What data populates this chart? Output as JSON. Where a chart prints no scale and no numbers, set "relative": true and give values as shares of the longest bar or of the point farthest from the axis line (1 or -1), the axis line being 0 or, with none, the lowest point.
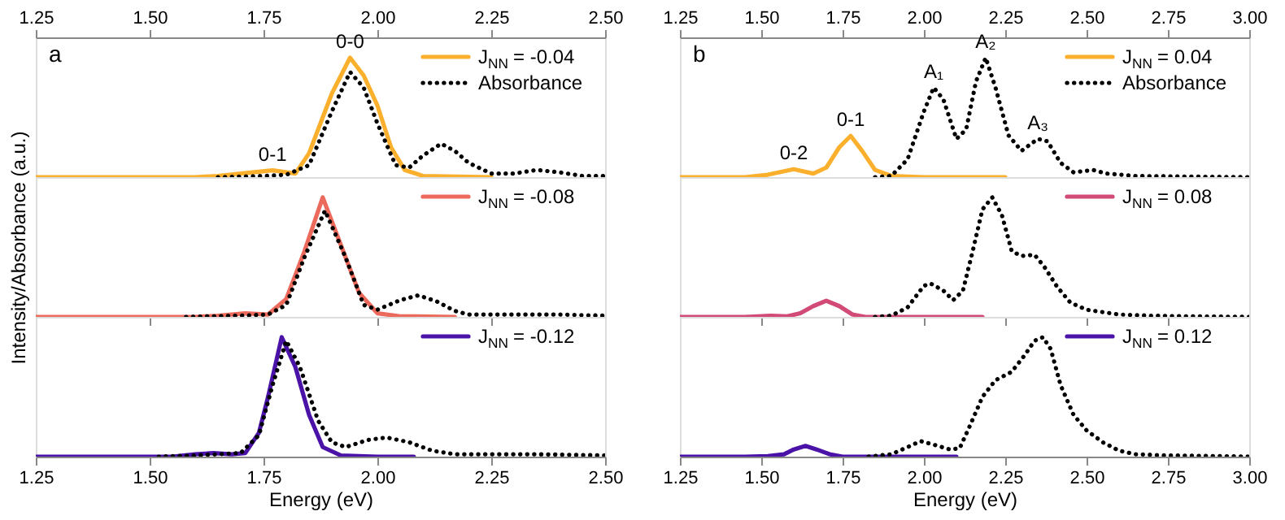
{
  "chart_data": [
    {
      "type": "line",
      "relative": true,
      "xlim": [
        1.25,
        2.5
      ],
      "xticks": [
        1.25,
        {
          "value": 1.5,
          "label": "1.50"
        },
        1.75,
        {
          "value": 2.0,
          "label": "2.00"
        },
        2.25,
        {
          "value": 2.5,
          "label": "2.50"
        }
      ],
      "legend": "top right",
      "annotations": [
        "a",
        {
          "text": "0-1",
          "x": 1.77,
          "y": 0.057
        },
        {
          "text": "0-0",
          "x": 1.94,
          "y": 1.0
        }
      ],
      "series": [
        {
          "name": "J$_{NN}$ = -0.04",
          "color": "#fbb02d",
          "line_style": "solid",
          "x": [
            1.25,
            1.6,
            1.65,
            1.7,
            1.77,
            1.82,
            1.85,
            1.88,
            1.9,
            1.94,
            1.97,
            2.0,
            2.03,
            2.06,
            2.1,
            2.25
          ],
          "values": [
            0,
            0,
            0.01,
            0.03,
            0.057,
            0.03,
            0.2,
            0.5,
            0.7,
            1.0,
            0.85,
            0.6,
            0.25,
            0.06,
            0.01,
            0
          ]
        },
        {
          "name": "Absorbance",
          "color": "#000000",
          "line_style": "dotted",
          "x": [
            1.65,
            1.75,
            1.8,
            1.85,
            1.9,
            1.94,
            1.97,
            2.0,
            2.04,
            2.07,
            2.1,
            2.14,
            2.17,
            2.2,
            2.25,
            2.3,
            2.35,
            2.4,
            2.45,
            2.5
          ],
          "values": [
            0,
            0.01,
            0.02,
            0.1,
            0.55,
            0.88,
            0.75,
            0.45,
            0.1,
            0.08,
            0.18,
            0.28,
            0.22,
            0.12,
            0.03,
            0.03,
            0.06,
            0.04,
            0.01,
            0.01
          ]
        }
      ]
    },
    {
      "type": "line",
      "relative": true,
      "xlim": [
        1.25,
        2.5
      ],
      "xticks": [
        1.25,
        1.5,
        1.75,
        2.0,
        2.25,
        2.5
      ],
      "tick_labels": false,
      "legend": "top right",
      "ylabel": "Intensity/Absorbance (a.u.)",
      "series": [
        {
          "name": "J$_{NN}$ = -0.08",
          "color": "#ec6a5c",
          "line_style": "solid",
          "x": [
            1.25,
            1.6,
            1.65,
            1.71,
            1.76,
            1.8,
            1.84,
            1.88,
            1.92,
            1.96,
            2.0,
            2.05,
            2.17
          ],
          "values": [
            0,
            0,
            0.01,
            0.03,
            0.02,
            0.15,
            0.55,
            1.0,
            0.6,
            0.2,
            0.03,
            0.005,
            0
          ]
        },
        {
          "color": "#000000",
          "line_style": "dotted",
          "x": [
            1.58,
            1.7,
            1.76,
            1.8,
            1.84,
            1.885,
            1.93,
            1.97,
            2.0,
            2.05,
            2.09,
            2.13,
            2.17,
            2.2,
            2.3,
            2.4,
            2.5
          ],
          "values": [
            0,
            0.01,
            0.02,
            0.1,
            0.5,
            0.89,
            0.5,
            0.1,
            0.06,
            0.14,
            0.18,
            0.13,
            0.05,
            0.02,
            0.02,
            0.02,
            0.01
          ]
        }
      ]
    },
    {
      "type": "line",
      "relative": true,
      "xlim": [
        1.25,
        2.5
      ],
      "xticks": [
        1.25,
        {
          "value": 1.5,
          "label": "1.50"
        },
        1.75,
        {
          "value": 2.0,
          "label": "2.00"
        },
        2.25,
        {
          "value": 2.5,
          "label": "2.50"
        }
      ],
      "xlabel": "Energy (eV)",
      "legend": "top right",
      "series": [
        {
          "name": "J$_{NN}$ = -0.12",
          "color": "#4b12a8",
          "line_style": "solid",
          "x": [
            1.25,
            1.55,
            1.6,
            1.64,
            1.68,
            1.71,
            1.74,
            1.76,
            1.79,
            1.82,
            1.85,
            1.88,
            1.92,
            2.0,
            2.08
          ],
          "values": [
            0,
            0,
            0.02,
            0.03,
            0.02,
            0.03,
            0.2,
            0.5,
            1.0,
            0.75,
            0.35,
            0.08,
            0.01,
            0,
            0
          ]
        },
        {
          "color": "#000000",
          "line_style": "dotted",
          "x": [
            1.52,
            1.6,
            1.7,
            1.74,
            1.77,
            1.8,
            1.83,
            1.87,
            1.9,
            1.93,
            1.98,
            2.02,
            2.07,
            2.12,
            2.17,
            2.25,
            2.35,
            2.5
          ],
          "values": [
            0,
            0.01,
            0.03,
            0.18,
            0.6,
            0.97,
            0.75,
            0.3,
            0.12,
            0.08,
            0.14,
            0.16,
            0.12,
            0.05,
            0.02,
            0.02,
            0.02,
            0.01
          ]
        }
      ]
    },
    {
      "type": "line",
      "relative": true,
      "xlim": [
        1.25,
        3.0
      ],
      "xticks": [
        1.25,
        {
          "value": 1.5,
          "label": "1.50"
        },
        1.75,
        {
          "value": 2.0,
          "label": "2.00"
        },
        2.25,
        {
          "value": 2.5,
          "label": "2.50"
        },
        2.75,
        {
          "value": 3.0,
          "label": "3.00"
        }
      ],
      "legend": "top right",
      "annotations": [
        "b",
        {
          "text": "0-2",
          "x": 1.6,
          "y": 0.066
        },
        {
          "text": "0-1",
          "x": 1.775,
          "y": 0.345
        },
        {
          "text": "A₁",
          "x": 2.03,
          "y": 0.75
        },
        {
          "text": "A₂",
          "x": 2.19,
          "y": 1.0
        },
        {
          "text": "A₃",
          "x": 2.35,
          "y": 0.32
        }
      ],
      "series": [
        {
          "name": "J$_{NN}$ = 0.04",
          "color": "#fbb02d",
          "line_style": "solid",
          "x": [
            1.25,
            1.45,
            1.52,
            1.6,
            1.66,
            1.7,
            1.74,
            1.775,
            1.81,
            1.85,
            1.9,
            2.0,
            2.25
          ],
          "values": [
            0,
            0,
            0.02,
            0.066,
            0.03,
            0.08,
            0.25,
            0.345,
            0.22,
            0.06,
            0.01,
            0,
            0
          ]
        },
        {
          "name": "Absorbance",
          "color": "#000000",
          "line_style": "dotted",
          "x": [
            1.85,
            1.9,
            1.95,
            2.0,
            2.03,
            2.06,
            2.1,
            2.13,
            2.16,
            2.19,
            2.22,
            2.26,
            2.3,
            2.35,
            2.38,
            2.42,
            2.46,
            2.52,
            2.56,
            2.65,
            2.8,
            3.0
          ],
          "values": [
            0,
            0.01,
            0.15,
            0.55,
            0.75,
            0.65,
            0.32,
            0.4,
            0.8,
            1.0,
            0.75,
            0.35,
            0.22,
            0.32,
            0.3,
            0.12,
            0.04,
            0.06,
            0.03,
            0.01,
            0.005,
            0
          ]
        }
      ]
    },
    {
      "type": "line",
      "relative": true,
      "xlim": [
        1.25,
        3.0
      ],
      "xticks": [
        1.25,
        1.5,
        1.75,
        2.0,
        2.25,
        2.5,
        2.75,
        3.0
      ],
      "tick_labels": false,
      "legend": "top right",
      "series": [
        {
          "name": "J$_{NN}$ = 0.08",
          "color": "#d24a76",
          "line_style": "solid",
          "x": [
            1.25,
            1.45,
            1.53,
            1.58,
            1.62,
            1.66,
            1.7,
            1.74,
            1.78,
            1.82,
            2.0,
            2.18
          ],
          "values": [
            0,
            0,
            0.01,
            0.005,
            0.03,
            0.09,
            0.135,
            0.09,
            0.02,
            0,
            0,
            0
          ]
        },
        {
          "color": "#000000",
          "line_style": "dotted",
          "x": [
            1.85,
            1.9,
            1.95,
            2.0,
            2.02,
            2.06,
            2.09,
            2.12,
            2.15,
            2.18,
            2.21,
            2.24,
            2.27,
            2.3,
            2.34,
            2.37,
            2.41,
            2.45,
            2.5,
            2.55,
            2.6,
            2.7,
            2.8,
            3.0
          ],
          "values": [
            0,
            0.01,
            0.08,
            0.26,
            0.28,
            0.22,
            0.14,
            0.22,
            0.55,
            0.9,
            1.0,
            0.85,
            0.55,
            0.51,
            0.52,
            0.42,
            0.25,
            0.12,
            0.06,
            0.04,
            0.02,
            0.01,
            0.005,
            0
          ]
        }
      ]
    },
    {
      "type": "line",
      "relative": true,
      "xlim": [
        1.25,
        3.0
      ],
      "xticks": [
        1.25,
        {
          "value": 1.5,
          "label": "1.50"
        },
        1.75,
        {
          "value": 2.0,
          "label": "2.00"
        },
        2.25,
        {
          "value": 2.5,
          "label": "2.50"
        },
        2.75,
        {
          "value": 3.0,
          "label": "3.00"
        }
      ],
      "xlabel": "Energy (eV)",
      "legend": "top right",
      "series": [
        {
          "name": "J$_{NN}$ = 0.12",
          "color": "#4b12a8",
          "line_style": "solid",
          "x": [
            1.25,
            1.45,
            1.52,
            1.57,
            1.6,
            1.636,
            1.67,
            1.71,
            1.75,
            2.1
          ],
          "values": [
            0,
            0,
            0.005,
            0.02,
            0.06,
            0.09,
            0.06,
            0.02,
            0,
            0
          ]
        },
        {
          "color": "#000000",
          "line_style": "dotted",
          "x": [
            1.83,
            1.9,
            1.95,
            1.99,
            2.03,
            2.08,
            2.11,
            2.14,
            2.18,
            2.22,
            2.27,
            2.31,
            2.34,
            2.366,
            2.39,
            2.42,
            2.46,
            2.5,
            2.55,
            2.6,
            2.65,
            2.75,
            3.0
          ],
          "values": [
            0,
            0.02,
            0.08,
            0.13,
            0.1,
            0.06,
            0.07,
            0.25,
            0.5,
            0.64,
            0.71,
            0.85,
            0.97,
            1.0,
            0.9,
            0.6,
            0.35,
            0.22,
            0.12,
            0.05,
            0.02,
            0.01,
            0
          ]
        }
      ]
    }
  ]
}
